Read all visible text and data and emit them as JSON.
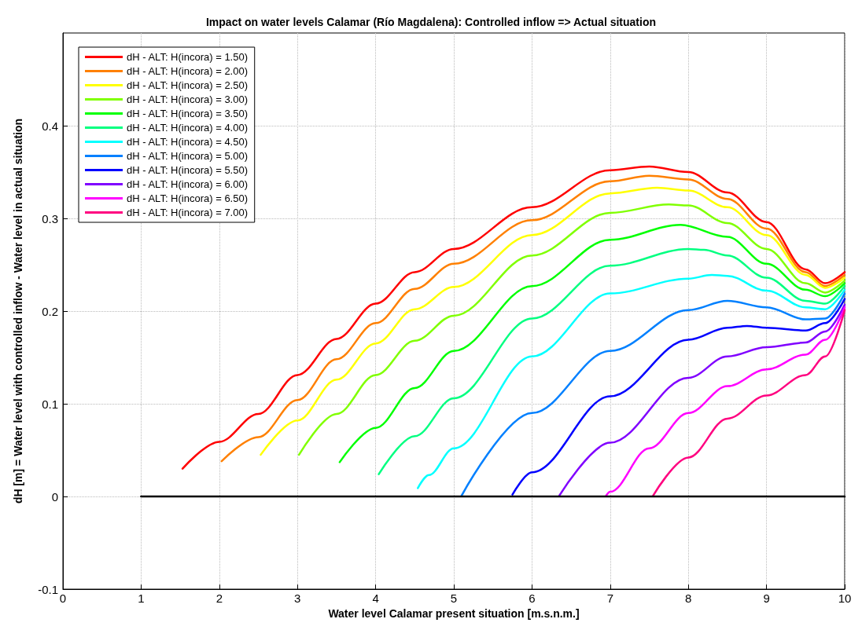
{
  "chart_data": {
    "type": "line",
    "title": "Impact on water levels Calamar (Río Magdalena): Controlled inflow => Actual situation",
    "xlabel": "Water level Calamar present situation [m.s.n.m.]",
    "ylabel": "dH [m] = Water level with controlled inflow - Water level in actual situation",
    "xlim": [
      0,
      10
    ],
    "xticks": [
      0,
      1,
      2,
      3,
      4,
      5,
      6,
      7,
      8,
      9,
      10
    ],
    "ylim": [
      -0.1,
      0.5
    ],
    "yticks": [
      -0.1,
      0,
      0.1,
      0.2,
      0.3,
      0.4
    ],
    "grid": true,
    "legend": "top left",
    "marker": "none",
    "line_style": "solid",
    "series": [
      {
        "name": "dH - ALT: H(incora) = 1.50)",
        "color": "#ff0000",
        "x": [
          1.53,
          2,
          2.5,
          3,
          3.5,
          4,
          4.5,
          5,
          6,
          7,
          7.5,
          8,
          8.5,
          9,
          9.5,
          9.75,
          10
        ],
        "values": [
          0.03,
          0.059,
          0.089,
          0.131,
          0.17,
          0.208,
          0.242,
          0.267,
          0.312,
          0.352,
          0.356,
          0.35,
          0.328,
          0.296,
          0.245,
          0.23,
          0.242
        ]
      },
      {
        "name": "dH - ALT: H(incora) = 2.00)",
        "color": "#ff8000",
        "x": [
          2.03,
          2.5,
          3,
          3.5,
          4,
          4.5,
          5,
          6,
          7,
          7.5,
          8,
          8.5,
          9,
          9.5,
          9.75,
          10
        ],
        "values": [
          0.038,
          0.064,
          0.104,
          0.148,
          0.187,
          0.224,
          0.251,
          0.298,
          0.34,
          0.346,
          0.342,
          0.321,
          0.289,
          0.242,
          0.227,
          0.239
        ]
      },
      {
        "name": "dH - ALT: H(incora) = 2.50)",
        "color": "#ffff00",
        "x": [
          2.53,
          3,
          3.5,
          4,
          4.5,
          5,
          6,
          7,
          7.6,
          8,
          8.5,
          9,
          9.5,
          9.75,
          10
        ],
        "values": [
          0.045,
          0.082,
          0.126,
          0.165,
          0.202,
          0.226,
          0.282,
          0.327,
          0.333,
          0.33,
          0.312,
          0.282,
          0.239,
          0.225,
          0.236
        ]
      },
      {
        "name": "dH - ALT: H(incora) = 3.00)",
        "color": "#80ff00",
        "x": [
          3.02,
          3.5,
          4,
          4.5,
          5,
          6,
          7,
          7.75,
          8,
          8.5,
          9,
          9.5,
          9.75,
          10
        ],
        "values": [
          0.045,
          0.089,
          0.131,
          0.168,
          0.195,
          0.26,
          0.306,
          0.315,
          0.314,
          0.295,
          0.267,
          0.23,
          0.22,
          0.233
        ]
      },
      {
        "name": "dH - ALT: H(incora) = 3.50)",
        "color": "#00ff00",
        "x": [
          3.54,
          4,
          4.5,
          5,
          6,
          7,
          7.9,
          8.5,
          9,
          9.5,
          9.75,
          10
        ],
        "values": [
          0.037,
          0.074,
          0.117,
          0.157,
          0.227,
          0.277,
          0.293,
          0.28,
          0.251,
          0.223,
          0.216,
          0.23
        ]
      },
      {
        "name": "dH - ALT: H(incora) = 4.00)",
        "color": "#00ff80",
        "x": [
          4.04,
          4.5,
          5,
          6,
          7,
          8,
          8.2,
          8.5,
          9,
          9.5,
          9.75,
          10
        ],
        "values": [
          0.024,
          0.065,
          0.106,
          0.192,
          0.249,
          0.267,
          0.266,
          0.26,
          0.236,
          0.211,
          0.208,
          0.227
        ]
      },
      {
        "name": "dH - ALT: H(incora) = 4.50)",
        "color": "#00ffff",
        "x": [
          4.54,
          4.68,
          5,
          6,
          7,
          8,
          8.3,
          8.5,
          9,
          9.5,
          9.75,
          10
        ],
        "values": [
          0.009,
          0.023,
          0.052,
          0.151,
          0.219,
          0.235,
          0.239,
          0.238,
          0.222,
          0.204,
          0.202,
          0.223
        ]
      },
      {
        "name": "dH - ALT: H(incora) = 5.00)",
        "color": "#0080ff",
        "x": [
          5.1,
          6,
          7,
          8,
          8.5,
          9,
          9.5,
          9.75,
          10
        ],
        "values": [
          0.001,
          0.09,
          0.157,
          0.201,
          0.211,
          0.204,
          0.191,
          0.192,
          0.219
        ]
      },
      {
        "name": "dH - ALT: H(incora) = 5.50)",
        "color": "#0000ff",
        "x": [
          5.75,
          6,
          7,
          8,
          8.5,
          8.75,
          9,
          9.5,
          9.75,
          10
        ],
        "values": [
          0.002,
          0.026,
          0.108,
          0.169,
          0.182,
          0.184,
          0.182,
          0.179,
          0.187,
          0.213
        ]
      },
      {
        "name": "dH - ALT: H(incora) = 6.00)",
        "color": "#8000ff",
        "x": [
          6.35,
          7,
          8,
          8.5,
          9,
          9.5,
          9.75,
          10
        ],
        "values": [
          0.001,
          0.058,
          0.128,
          0.151,
          0.161,
          0.166,
          0.178,
          0.207
        ]
      },
      {
        "name": "dH - ALT: H(incora) = 6.50)",
        "color": "#ff00ff",
        "x": [
          6.95,
          7,
          7.5,
          8,
          8.5,
          9,
          9.5,
          9.75,
          10
        ],
        "values": [
          0.001,
          0.005,
          0.052,
          0.09,
          0.119,
          0.137,
          0.153,
          0.169,
          0.204
        ]
      },
      {
        "name": "dH - ALT: H(incora) = 7.00)",
        "color": "#ff0080",
        "x": [
          7.55,
          8,
          8.5,
          9,
          9.5,
          9.75,
          10
        ],
        "values": [
          0.001,
          0.042,
          0.084,
          0.109,
          0.131,
          0.151,
          0.201
        ]
      },
      {
        "color": "#000000",
        "x": [
          1,
          10
        ],
        "values": [
          0,
          0
        ]
      }
    ]
  }
}
